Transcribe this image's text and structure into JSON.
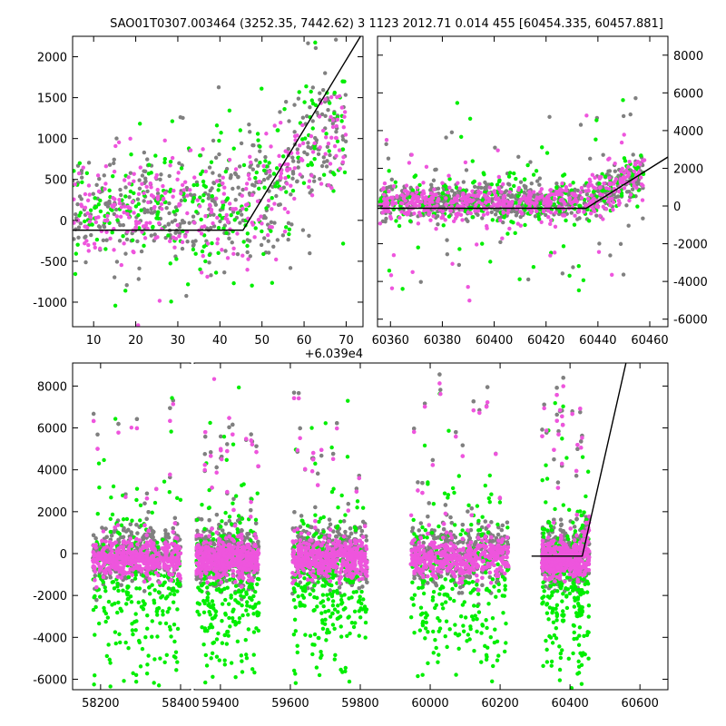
{
  "title": "SAO01T0307.003464 (3252.35, 7442.62)    3 1123 2012.71 0.014 455 [60454.335, 60457.881]",
  "colors": {
    "grey": "#808080",
    "green": "#00ee00",
    "magenta": "#ee55dd",
    "model": "#000000"
  },
  "chart_data": [
    {
      "panel": "zoom-top-left",
      "type": "scatter",
      "x_offset_label": "+6.039e4",
      "xlim": [
        5,
        74
      ],
      "ylim": [
        -1300,
        2250
      ],
      "xticks": [
        "10",
        "20",
        "30",
        "40",
        "50",
        "60",
        "70"
      ],
      "yticks": [
        "-1000",
        "-500",
        "0",
        "500",
        "1000",
        "1500",
        "2000"
      ],
      "y_axis_side": "left",
      "series": [
        {
          "color": "grey",
          "count": 420,
          "x_range": [
            5,
            70
          ],
          "baseline": 0
        },
        {
          "color": "green",
          "count": 260,
          "x_range": [
            5,
            70
          ],
          "baseline": 0
        },
        {
          "color": "magenta",
          "count": 300,
          "x_range": [
            5,
            70
          ],
          "baseline": 0
        }
      ],
      "model_line": [
        [
          5,
          -120
        ],
        [
          45.5,
          -120
        ],
        [
          74,
          2300
        ]
      ]
    },
    {
      "panel": "zoom-top-right",
      "type": "scatter",
      "xlim": [
        60355,
        60467
      ],
      "ylim": [
        -6400,
        9000
      ],
      "xticks": [
        "60360",
        "60380",
        "60400",
        "60420",
        "60440",
        "60460"
      ],
      "yticks": [
        "-6000",
        "-4000",
        "-2000",
        "0",
        "2000",
        "4000",
        "6000",
        "8000"
      ],
      "y_axis_side": "right",
      "series": [
        {
          "color": "grey",
          "count": 700,
          "x_range": [
            60356,
            60458
          ],
          "baseline": 0
        },
        {
          "color": "green",
          "count": 320,
          "x_range": [
            60356,
            60458
          ],
          "baseline": 0
        },
        {
          "color": "magenta",
          "count": 520,
          "x_range": [
            60356,
            60458
          ],
          "baseline": 0
        }
      ],
      "model_line": [
        [
          60355,
          -120
        ],
        [
          60435.5,
          -120
        ],
        [
          60467,
          2600
        ]
      ]
    },
    {
      "panel": "full-bottom",
      "type": "scatter",
      "xlim": [
        58130,
        60680
      ],
      "ylim": [
        -6500,
        9100
      ],
      "xbreak": [
        58425,
        59325
      ],
      "xticks": [
        "58200",
        "58400",
        "59400",
        "59600",
        "59800",
        "60000",
        "60200",
        "60400",
        "60600"
      ],
      "yticks": [
        "-6000",
        "-4000",
        "-2000",
        "0",
        "2000",
        "4000",
        "6000",
        "8000"
      ],
      "y_axis_side": "left",
      "seasons": [
        [
          58180,
          58400
        ],
        [
          59330,
          59510
        ],
        [
          59605,
          59820
        ],
        [
          59945,
          60225
        ],
        [
          60320,
          60455
        ]
      ],
      "series": [
        {
          "color": "grey",
          "count": 5000,
          "baseline": 0
        },
        {
          "color": "green",
          "count": 1400,
          "baseline": 0
        },
        {
          "color": "magenta",
          "count": 5600,
          "baseline": 0
        }
      ],
      "model_line": [
        [
          60290,
          -120
        ],
        [
          60435,
          -120
        ],
        [
          60560,
          9100
        ]
      ]
    }
  ]
}
